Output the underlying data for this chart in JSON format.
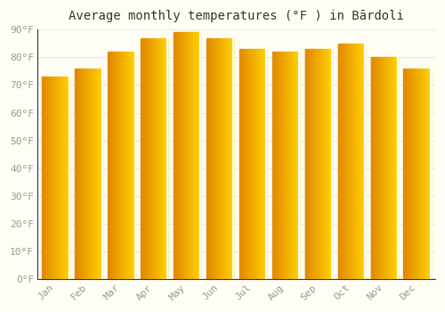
{
  "title": "Average monthly temperatures (°F ) in Bārdoli",
  "months": [
    "Jan",
    "Feb",
    "Mar",
    "Apr",
    "May",
    "Jun",
    "Jul",
    "Aug",
    "Sep",
    "Oct",
    "Nov",
    "Dec"
  ],
  "values": [
    73,
    76,
    82,
    87,
    89,
    87,
    83,
    82,
    83,
    85,
    80,
    76
  ],
  "bar_color": "#FFA500",
  "bar_color_left": "#E08800",
  "bar_color_right": "#FFD000",
  "background_color": "#FFFEF5",
  "grid_color": "#E8E8E8",
  "ylim": [
    0,
    90
  ],
  "yticks": [
    0,
    10,
    20,
    30,
    40,
    50,
    60,
    70,
    80,
    90
  ],
  "ytick_labels": [
    "0°F",
    "10°F",
    "20°F",
    "30°F",
    "40°F",
    "50°F",
    "60°F",
    "70°F",
    "80°F",
    "90°F"
  ],
  "title_fontsize": 10,
  "tick_fontsize": 8,
  "tick_color": "#999999",
  "bar_width": 0.82
}
